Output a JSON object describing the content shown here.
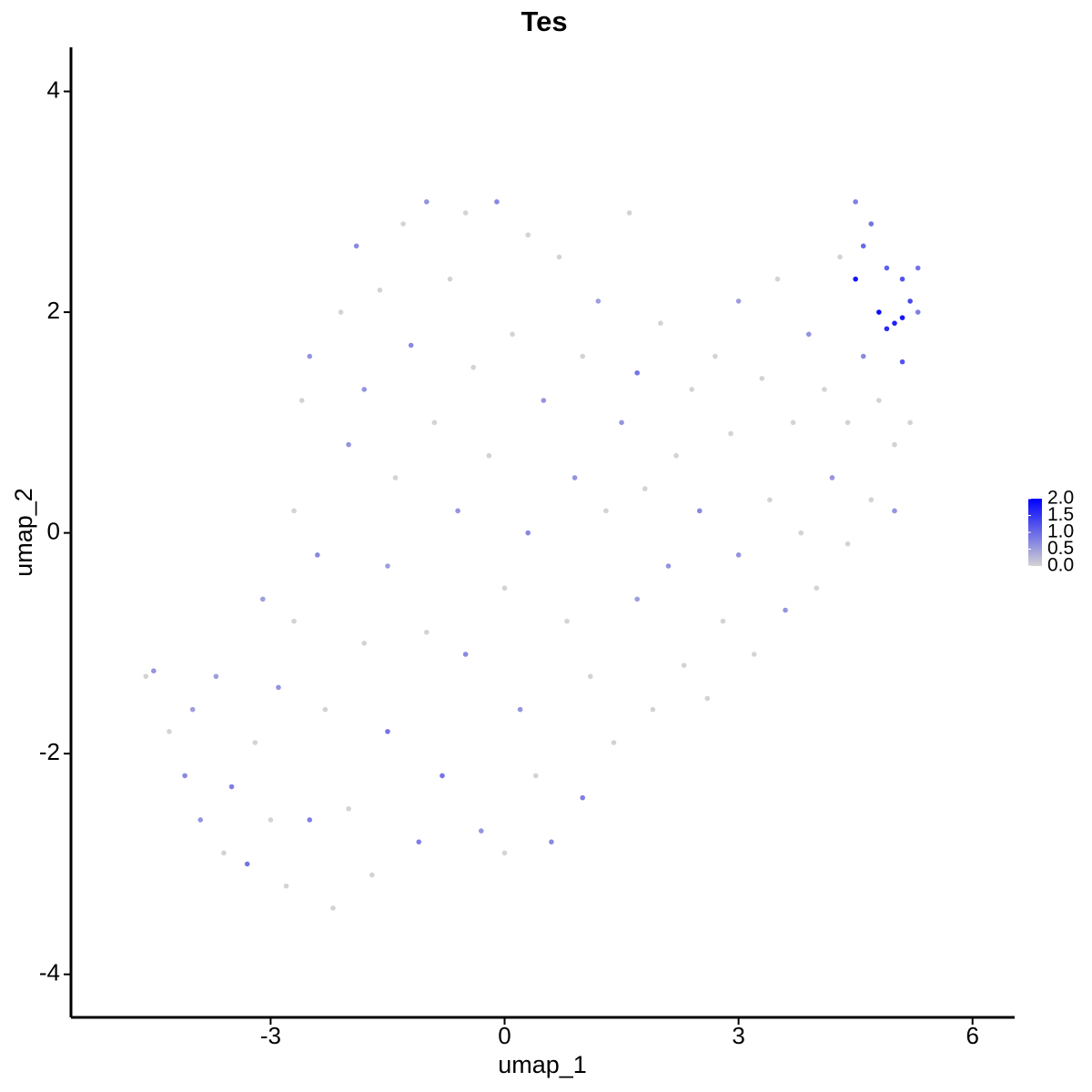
{
  "chart_data": {
    "type": "scatter",
    "title": "Tes",
    "x_label": "umap_1",
    "y_label": "umap_2",
    "xlim": [
      -5.56,
      6.54
    ],
    "ylim": [
      -4.39,
      4.4
    ],
    "xticks": [
      -3,
      0,
      3,
      6
    ],
    "yticks": [
      -4,
      -2,
      0,
      2,
      4
    ],
    "color_low": "#d3d3d3",
    "color_high": "#0000ff",
    "color_lim": [
      0,
      2
    ],
    "color_ticks": [
      {
        "value": 0,
        "label": "0.0"
      },
      0.5,
      {
        "value": 1,
        "label": "1.0"
      },
      1.5,
      {
        "value": 2,
        "label": "2.0"
      }
    ],
    "x": [
      -4.6,
      -4.5,
      -4.3,
      -4.1,
      -4.0,
      -3.9,
      -3.7,
      -3.6,
      -3.5,
      -3.3,
      -3.2,
      -3.1,
      -3.0,
      -2.9,
      -2.8,
      -2.7,
      -2.7,
      -2.6,
      -2.5,
      -2.5,
      -2.4,
      -2.3,
      -2.2,
      -2.1,
      -2.0,
      -2.0,
      -1.9,
      -1.8,
      -1.8,
      -1.7,
      -1.6,
      -1.5,
      -1.5,
      -1.4,
      -1.3,
      -1.2,
      -1.1,
      -1.0,
      -1.0,
      -0.9,
      -0.8,
      -0.7,
      -0.6,
      -0.5,
      -0.5,
      -0.4,
      -0.3,
      -0.2,
      -0.1,
      0.0,
      0.0,
      0.1,
      0.2,
      0.3,
      0.3,
      0.4,
      0.5,
      0.6,
      0.7,
      0.8,
      0.9,
      1.0,
      1.0,
      1.1,
      1.2,
      1.3,
      1.4,
      1.5,
      1.6,
      1.7,
      1.7,
      1.8,
      1.9,
      2.0,
      2.1,
      2.2,
      2.3,
      2.4,
      2.5,
      2.6,
      2.7,
      2.8,
      2.9,
      3.0,
      3.0,
      3.2,
      3.3,
      3.4,
      3.5,
      3.6,
      3.7,
      3.8,
      3.9,
      4.0,
      4.1,
      4.2,
      4.3,
      4.4,
      4.4,
      4.5,
      4.5,
      4.6,
      4.6,
      4.7,
      4.7,
      4.8,
      4.8,
      4.9,
      4.9,
      5.0,
      5.0,
      5.1,
      5.1,
      5.2,
      5.2,
      5.3,
      5.3,
      5.1,
      5.0
    ],
    "y": [
      -1.3,
      -1.25,
      -1.8,
      -2.2,
      -1.6,
      -2.6,
      -1.3,
      -2.9,
      -2.3,
      -3.0,
      -1.9,
      -0.6,
      -2.6,
      -1.4,
      -3.2,
      0.2,
      -0.8,
      1.2,
      1.6,
      -2.6,
      -0.2,
      -1.6,
      -3.4,
      2.0,
      0.8,
      -2.5,
      2.6,
      -1.0,
      1.3,
      -3.1,
      2.2,
      -0.3,
      -1.8,
      0.5,
      2.8,
      1.7,
      -2.8,
      -0.9,
      3.0,
      1.0,
      -2.2,
      2.3,
      0.2,
      2.9,
      -1.1,
      1.5,
      -2.7,
      0.7,
      3.0,
      -0.5,
      -2.9,
      1.8,
      -1.6,
      2.7,
      0.0,
      -2.2,
      1.2,
      -2.8,
      2.5,
      -0.8,
      0.5,
      -2.4,
      1.6,
      -1.3,
      2.1,
      0.2,
      -1.9,
      1.0,
      2.9,
      -0.6,
      1.45,
      0.4,
      -1.6,
      1.9,
      -0.3,
      0.7,
      -1.2,
      1.3,
      0.2,
      -1.5,
      1.6,
      -0.8,
      0.9,
      -0.2,
      2.1,
      -1.1,
      1.4,
      0.3,
      2.3,
      -0.7,
      1.0,
      0.0,
      1.8,
      -0.5,
      1.3,
      0.5,
      2.5,
      -0.1,
      1.0,
      2.3,
      3.0,
      1.6,
      2.6,
      0.3,
      2.8,
      1.2,
      2.0,
      1.85,
      2.4,
      0.8,
      1.9,
      1.95,
      2.3,
      1.0,
      2.1,
      2.0,
      2.4,
      1.55,
      0.2
    ],
    "expression": [
      0,
      0.6,
      0,
      0.7,
      0.5,
      0.6,
      0.5,
      0,
      0.8,
      0.9,
      0,
      0.5,
      0,
      0.6,
      0,
      0,
      0,
      0,
      0.6,
      0.8,
      0.7,
      0,
      0,
      0,
      0.6,
      0,
      0.7,
      0,
      0.6,
      0,
      0,
      0.5,
      0.9,
      0,
      0,
      0.7,
      0.8,
      0,
      0.6,
      0,
      0.9,
      0,
      0.6,
      0,
      0.7,
      0,
      0.6,
      0,
      0.7,
      0,
      0,
      0,
      0.6,
      0,
      0.7,
      0,
      0.6,
      0.7,
      0,
      0,
      0.6,
      0.8,
      0,
      0,
      0.5,
      0,
      0,
      0.6,
      0,
      0.5,
      0.9,
      0,
      0,
      0,
      0.6,
      0,
      0,
      0,
      0.7,
      0,
      0,
      0,
      0,
      0.6,
      0.5,
      0,
      0,
      0,
      0,
      0.6,
      0,
      0,
      0.6,
      0,
      0,
      0.6,
      0,
      0,
      0,
      1.8,
      0.8,
      0.7,
      1.0,
      0,
      0.9,
      0,
      1.9,
      1.6,
      1.1,
      0,
      1.7,
      1.8,
      1.2,
      0,
      1.3,
      0.8,
      0.9,
      1.2,
      0.6
    ]
  }
}
